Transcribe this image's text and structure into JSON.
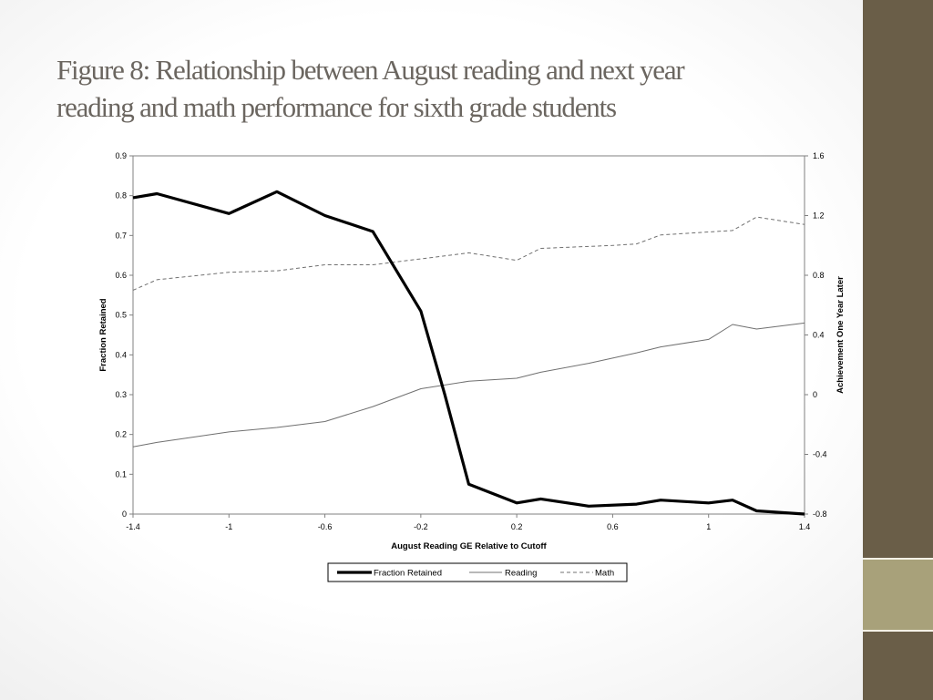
{
  "slide": {
    "title_line1": "Figure 8: Relationship between August reading and next year",
    "title_line2": "reading and math performance for sixth grade students"
  },
  "theme": {
    "sidebar_color": "#6a5e48",
    "sidebar_accent_color": "#a8a17a",
    "title_color": "#6b6660"
  },
  "chart_data": {
    "type": "line",
    "xlabel": "August Reading GE Relative to Cutoff",
    "ylabel_left": "Fraction Retained",
    "ylabel_right": "Achievement One Year Later",
    "xlim": [
      -1.4,
      1.4
    ],
    "ylim_left": [
      0,
      0.9
    ],
    "ylim_right": [
      -0.8,
      1.6
    ],
    "x_ticks": [
      "-1.4",
      "-1",
      "-0.6",
      "-0.2",
      "0.2",
      "0.6",
      "1",
      "1.4"
    ],
    "y_left_ticks": [
      "0",
      "0.1",
      "0.2",
      "0.3",
      "0.4",
      "0.5",
      "0.6",
      "0.7",
      "0.8",
      "0.9"
    ],
    "y_right_ticks": [
      "-0.8",
      "-0.4",
      "0",
      "0.4",
      "0.8",
      "1.2",
      "1.6"
    ],
    "grid": false,
    "legend_position": "bottom",
    "series": [
      {
        "name": "Fraction Retained",
        "axis": "left",
        "style": "thick",
        "color": "#000000",
        "x": [
          -1.4,
          -1.3,
          -1.0,
          -0.8,
          -0.6,
          -0.4,
          -0.2,
          -0.1,
          0.0,
          0.2,
          0.3,
          0.5,
          0.7,
          0.8,
          1.0,
          1.1,
          1.2,
          1.4
        ],
        "values": [
          0.795,
          0.805,
          0.755,
          0.81,
          0.75,
          0.71,
          0.51,
          0.3,
          0.075,
          0.028,
          0.038,
          0.02,
          0.025,
          0.035,
          0.028,
          0.035,
          0.008,
          0.0
        ]
      },
      {
        "name": "Reading",
        "axis": "right",
        "style": "solid",
        "color": "#707070",
        "x": [
          -1.4,
          -1.3,
          -1.0,
          -0.8,
          -0.6,
          -0.4,
          -0.2,
          0.0,
          0.2,
          0.3,
          0.5,
          0.7,
          0.8,
          1.0,
          1.1,
          1.2,
          1.4
        ],
        "values": [
          -0.35,
          -0.32,
          -0.25,
          -0.22,
          -0.18,
          -0.08,
          0.04,
          0.09,
          0.11,
          0.15,
          0.21,
          0.28,
          0.32,
          0.37,
          0.47,
          0.44,
          0.48
        ]
      },
      {
        "name": "Math",
        "axis": "right",
        "style": "dashed",
        "color": "#707070",
        "x": [
          -1.4,
          -1.3,
          -1.0,
          -0.8,
          -0.6,
          -0.4,
          -0.2,
          0.0,
          0.2,
          0.3,
          0.6,
          0.7,
          0.8,
          1.0,
          1.1,
          1.2,
          1.4
        ],
        "values": [
          0.7,
          0.77,
          0.82,
          0.83,
          0.87,
          0.87,
          0.91,
          0.95,
          0.9,
          0.98,
          1.0,
          1.01,
          1.07,
          1.09,
          1.1,
          1.19,
          1.14
        ]
      }
    ]
  }
}
